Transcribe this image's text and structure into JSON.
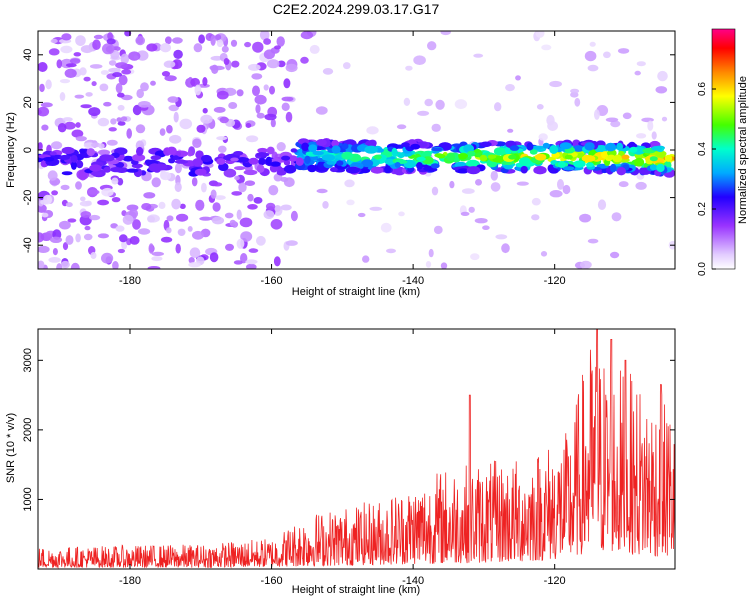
{
  "title": "C2E2.2024.299.03.17.G17",
  "chart_data": [
    {
      "type": "heatmap",
      "title": "C2E2.2024.299.03.17.G17",
      "xlabel": "Height of straight line (km)",
      "ylabel": "Frequency (Hz)",
      "xlim": [
        -193,
        -103
      ],
      "ylim": [
        -50,
        50
      ],
      "x_ticks": [
        -180,
        -160,
        -140,
        -120
      ],
      "y_ticks": [
        -40,
        -20,
        0,
        20,
        40
      ],
      "grid": false,
      "colorbar": {
        "label": "Normalized spectral amplitude",
        "range": [
          0.0,
          0.8
        ],
        "ticks": [
          0.0,
          0.2,
          0.4,
          0.6
        ],
        "tick_labels": [
          "0.0",
          "0.2",
          "0.4",
          "0.6"
        ],
        "colors": [
          "#ffffff",
          "#e0c8ff",
          "#9933ff",
          "#2200ff",
          "#00aaff",
          "#00ffcc",
          "#44ff00",
          "#ffff00",
          "#ff8800",
          "#ff0000",
          "#ff0088"
        ]
      },
      "signal": {
        "band_center_hz": [
          {
            "x": -156,
            "y": -2
          },
          {
            "x": -150,
            "y": -3
          },
          {
            "x": -140,
            "y": -3
          },
          {
            "x": -130,
            "y": -3
          },
          {
            "x": -120,
            "y": -3
          },
          {
            "x": -110,
            "y": -3
          },
          {
            "x": -104,
            "y": -4
          }
        ],
        "band_halfwidth_hz": 6,
        "noise_region_x": [
          -193,
          -155
        ]
      }
    },
    {
      "type": "line",
      "xlabel": "Height of straight line (km)",
      "ylabel": "SNR (10 * v/v)",
      "xlim": [
        -193,
        -103
      ],
      "ylim": [
        0,
        3450
      ],
      "x_ticks": [
        -180,
        -160,
        -140,
        -120
      ],
      "y_ticks": [
        1000,
        2000,
        3000
      ],
      "color": "#ee2222",
      "grid": false,
      "envelope": [
        {
          "x": -193,
          "min": 20,
          "max": 320
        },
        {
          "x": -170,
          "min": 20,
          "max": 360
        },
        {
          "x": -160,
          "min": 30,
          "max": 450
        },
        {
          "x": -155,
          "min": 40,
          "max": 800
        },
        {
          "x": -145,
          "min": 60,
          "max": 1000
        },
        {
          "x": -135,
          "min": 80,
          "max": 1500
        },
        {
          "x": -125,
          "min": 100,
          "max": 1600
        },
        {
          "x": -118,
          "min": 150,
          "max": 2000
        },
        {
          "x": -115,
          "min": 250,
          "max": 3300
        },
        {
          "x": -108,
          "min": 200,
          "max": 2700
        },
        {
          "x": -103,
          "min": 150,
          "max": 2400
        }
      ],
      "peaks": [
        {
          "x": -132,
          "y": 2500
        },
        {
          "x": -114,
          "y": 3450
        },
        {
          "x": -112,
          "y": 3300
        },
        {
          "x": -110,
          "y": 3000
        },
        {
          "x": -105,
          "y": 2650
        }
      ]
    }
  ]
}
